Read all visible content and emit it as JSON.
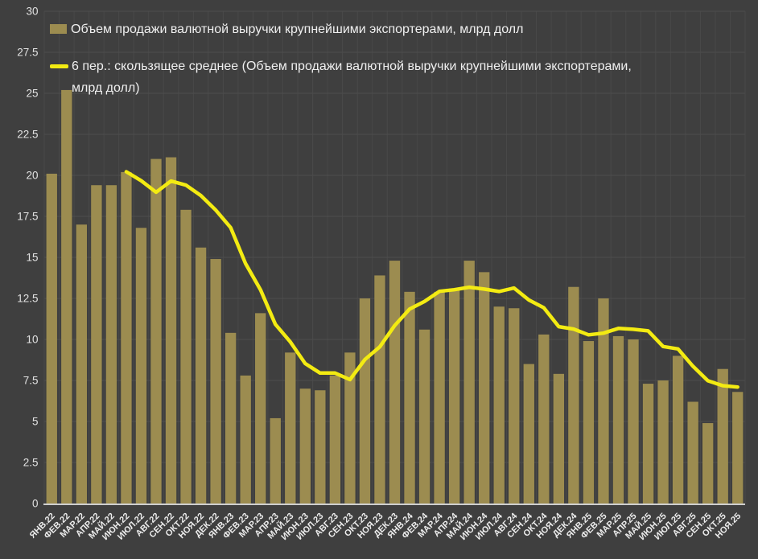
{
  "chart_data": {
    "type": "bar",
    "categories": [
      "ЯНВ.22",
      "ФЕВ.22",
      "МАР.22",
      "АПР.22",
      "МАЙ.22",
      "ИЮН.22",
      "ИЮЛ.22",
      "АВГ.22",
      "СЕН.22",
      "ОКТ.22",
      "НОЯ.22",
      "ДЕК.22",
      "ЯНВ.23",
      "ФЕВ.23",
      "МАР.23",
      "АПР.23",
      "МАЙ.23",
      "ИЮН.23",
      "ИЮЛ.23",
      "АВГ.23",
      "СЕН.23",
      "ОКТ.23",
      "НОЯ.23",
      "ДЕК.23",
      "ЯНВ.24",
      "ФЕВ.24",
      "МАР.24",
      "АПР.24",
      "МАЙ.24",
      "ИЮН.24",
      "ИЮЛ.24",
      "АВГ.24",
      "СЕН.24",
      "ОКТ.24",
      "НОЯ.24",
      "ДЕК.24",
      "ЯНВ.25",
      "ФЕВ.25",
      "МАР.25",
      "АПР.25",
      "МАЙ.25",
      "ИЮН.25",
      "ИЮЛ.25",
      "АВГ.25",
      "СЕН.25",
      "ОКТ.25",
      "НОЯ.25"
    ],
    "series": [
      {
        "name": "Объем продажи  валютной выручки крупнейшими экспортерами, млрд долл",
        "type": "bar",
        "color": "#9c8c50",
        "values": [
          20.1,
          25.2,
          17.0,
          19.4,
          19.4,
          20.2,
          16.8,
          21.0,
          21.1,
          17.9,
          15.6,
          14.9,
          10.4,
          7.8,
          11.6,
          5.2,
          9.2,
          7.0,
          6.9,
          7.8,
          9.2,
          12.5,
          13.9,
          14.8,
          12.9,
          10.6,
          12.9,
          13.1,
          14.8,
          14.1,
          12.0,
          11.9,
          8.5,
          10.3,
          7.9,
          13.2,
          9.9,
          12.5,
          10.2,
          10.0,
          7.3,
          7.5,
          9.0,
          6.2,
          4.9,
          8.2,
          6.8
        ]
      },
      {
        "name": "6 пер.: скользящее среднее (Объем продажи  валютной выручки крупнейшими экспортерами, млрд долл)",
        "type": "line",
        "moving_average_window": 6,
        "color": "#f3eb12",
        "values": [
          null,
          null,
          null,
          null,
          null,
          20.22,
          19.67,
          18.97,
          19.65,
          19.4,
          18.77,
          17.88,
          16.82,
          14.62,
          13.03,
          10.92,
          9.85,
          8.53,
          7.95,
          7.95,
          7.55,
          8.77,
          9.55,
          10.85,
          11.85,
          12.32,
          12.93,
          13.03,
          13.18,
          13.07,
          12.92,
          13.13,
          12.4,
          11.93,
          10.78,
          10.63,
          10.28,
          10.38,
          10.67,
          10.62,
          10.52,
          9.57,
          9.42,
          8.37,
          7.48,
          7.18,
          7.1
        ]
      }
    ],
    "xlabel": "",
    "ylabel": "",
    "ylim": [
      0,
      30
    ],
    "y_tick_step": 2.5,
    "y_ticks": [
      0,
      2.5,
      5,
      7.5,
      10,
      12.5,
      15,
      17.5,
      20,
      22.5,
      25,
      27.5,
      30
    ],
    "grid": true,
    "legend_position": "top-left",
    "colors": {
      "background": "#3f3f3f",
      "gridline": "#4d4d4d",
      "axis_line": "#cfcfcf",
      "tick_text": "#e2e2e2",
      "x_label_text": "#ececec"
    }
  }
}
